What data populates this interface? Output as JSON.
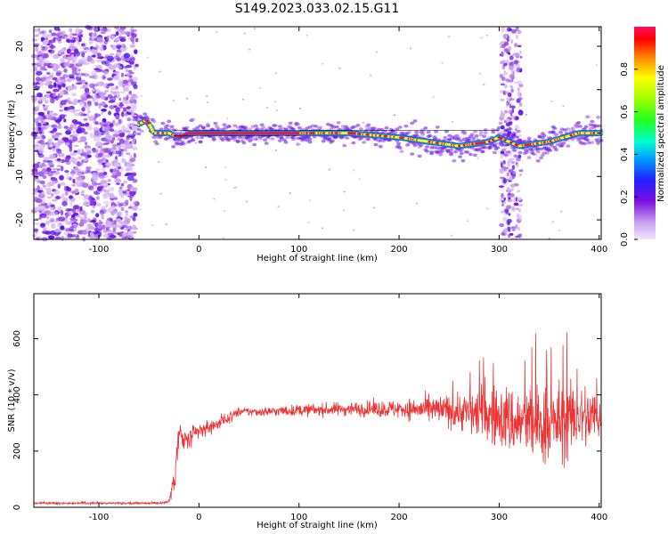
{
  "title": "S149.2023.033.02.15.G11",
  "chart_data": [
    {
      "type": "heatmap",
      "xlabel": "Height of straight line (km)",
      "ylabel": "Frequency (Hz)",
      "xlim": [
        -165,
        402
      ],
      "ylim": [
        -24.5,
        24.5
      ],
      "xticks": [
        -100,
        0,
        100,
        200,
        300,
        400
      ],
      "yticks": [
        -20,
        -10,
        0,
        10,
        20
      ],
      "colorbar": {
        "label": "Normalized spectral amplitude",
        "range": [
          0,
          1
        ],
        "ticks": [
          0.0,
          0.2,
          0.4,
          0.6,
          0.8
        ],
        "colormap": "rainbow-purple-to-red"
      },
      "features": {
        "noise_region_km": [
          -165,
          -62
        ],
        "noise_column_km": [
          302,
          322
        ],
        "carrier_start_km": -60,
        "carrier_frequency_hz": [
          [
            -60,
            2
          ],
          [
            -52,
            3
          ],
          [
            -45,
            0
          ],
          [
            -30,
            0
          ],
          [
            -20,
            -1
          ],
          [
            -10,
            0
          ],
          [
            0,
            0
          ],
          [
            50,
            0
          ],
          [
            100,
            0
          ],
          [
            150,
            0
          ],
          [
            200,
            -1
          ],
          [
            230,
            -2
          ],
          [
            260,
            -3
          ],
          [
            290,
            -2
          ],
          [
            300,
            -1
          ],
          [
            320,
            -3
          ],
          [
            350,
            -2
          ],
          [
            380,
            0
          ],
          [
            402,
            0
          ]
        ]
      }
    },
    {
      "type": "line",
      "xlabel": "Height of straight line (km)",
      "ylabel": "SNR (10 * v/v)",
      "xlim": [
        -165,
        402
      ],
      "ylim": [
        0,
        760
      ],
      "xticks": [
        -100,
        0,
        100,
        200,
        300,
        400
      ],
      "yticks": [
        0,
        200,
        400,
        600
      ],
      "color": "#ee3333",
      "series": [
        {
          "x": [
            -165,
            -40,
            -30,
            -25,
            -20,
            -15,
            -10,
            0,
            20,
            40,
            60,
            100,
            150,
            200,
            250,
            280,
            300,
            320,
            340,
            360,
            380,
            402
          ],
          "y": [
            15,
            15,
            20,
            90,
            260,
            230,
            240,
            270,
            300,
            340,
            340,
            345,
            350,
            350,
            345,
            335,
            320,
            300,
            290,
            300,
            320,
            320
          ],
          "spread": [
            5,
            5,
            10,
            60,
            80,
            60,
            50,
            40,
            30,
            20,
            20,
            25,
            30,
            40,
            70,
            110,
            140,
            160,
            170,
            170,
            150,
            140
          ]
        }
      ]
    }
  ]
}
